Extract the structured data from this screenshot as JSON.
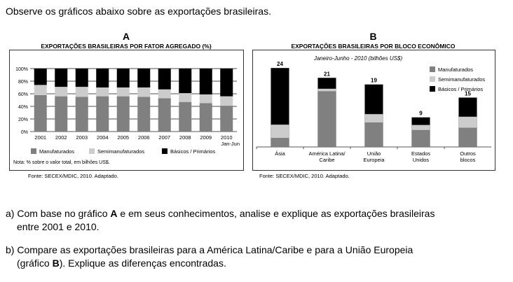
{
  "intro": "Observe os gráficos abaixo sobre as exportações brasileiras.",
  "colors": {
    "manufaturados": "#808080",
    "semimanufaturados": "#cccccc",
    "basicos": "#000000"
  },
  "chart_data": [
    {
      "type": "bar",
      "stacked": true,
      "letter": "A",
      "title": "EXPORTAÇÕES BRASILEIRAS POR FATOR AGREGADO (%)",
      "categories": [
        "2001",
        "2002",
        "2003",
        "2004",
        "2005",
        "2006",
        "2007",
        "2008",
        "2009",
        "2010"
      ],
      "last_category_sub": "Jan-Jun",
      "yticks": [
        "0%",
        "20%",
        "40%",
        "60%",
        "80%",
        "100%"
      ],
      "ylim": [
        0,
        100
      ],
      "series": [
        {
          "name": "Manufaturados",
          "values": [
            58,
            56,
            55,
            56,
            56,
            55,
            53,
            47,
            45,
            41
          ]
        },
        {
          "name": "Semimanufaturados",
          "values": [
            16,
            15,
            16,
            14,
            14,
            15,
            14,
            14,
            14,
            15
          ]
        },
        {
          "name": "Básicos / Primários",
          "values": [
            26,
            29,
            29,
            30,
            30,
            30,
            33,
            39,
            41,
            44
          ]
        }
      ],
      "note": "Nota: % sobre o valor total, em bilhões US$.",
      "source": "Fonte: SECEX/MDIC, 2010. Adaptado."
    },
    {
      "type": "bar",
      "stacked": true,
      "letter": "B",
      "title": "EXPORTAÇÕES BRASILEIRAS POR BLOCO ECONÔMICO",
      "subtitle": "Janeiro-Junho - 2010 (bilhões US$)",
      "categories": [
        [
          "Ásia",
          ""
        ],
        [
          "América Latina/",
          "Caribe"
        ],
        [
          "União",
          "Europeia"
        ],
        [
          "Estados",
          "Unidos"
        ],
        [
          "Outros",
          "blocos"
        ]
      ],
      "totals": [
        "24",
        "21",
        "19",
        "9",
        "15"
      ],
      "series": [
        {
          "name": "Manufaturados",
          "values": [
            2.7,
            16.9,
            7.4,
            5.1,
            5.8
          ]
        },
        {
          "name": "Semimanufaturados",
          "values": [
            4.1,
            0.8,
            2.6,
            1.6,
            3.4
          ]
        },
        {
          "name": "Básicos / Primários",
          "values": [
            17.2,
            3.3,
            9.0,
            2.3,
            5.8
          ]
        }
      ],
      "ylim": [
        0,
        26
      ],
      "source": "Fonte: SECEX/MDIC, 2010. Adaptado."
    }
  ],
  "questions": {
    "a_prefix": "a) Com base no gráfico ",
    "a_bold": "A",
    "a_rest": " e em seus conhecimentos, analise e explique as exportações brasileiras",
    "a_line2": "entre 2001 e 2010.",
    "b_prefix": "b) Compare as exportações brasileiras para a América Latina/Caribe e para a União Europeia",
    "b_line2_pre": "(gráfico ",
    "b_bold": "B",
    "b_line2_post": "). Explique as diferenças encontradas."
  }
}
